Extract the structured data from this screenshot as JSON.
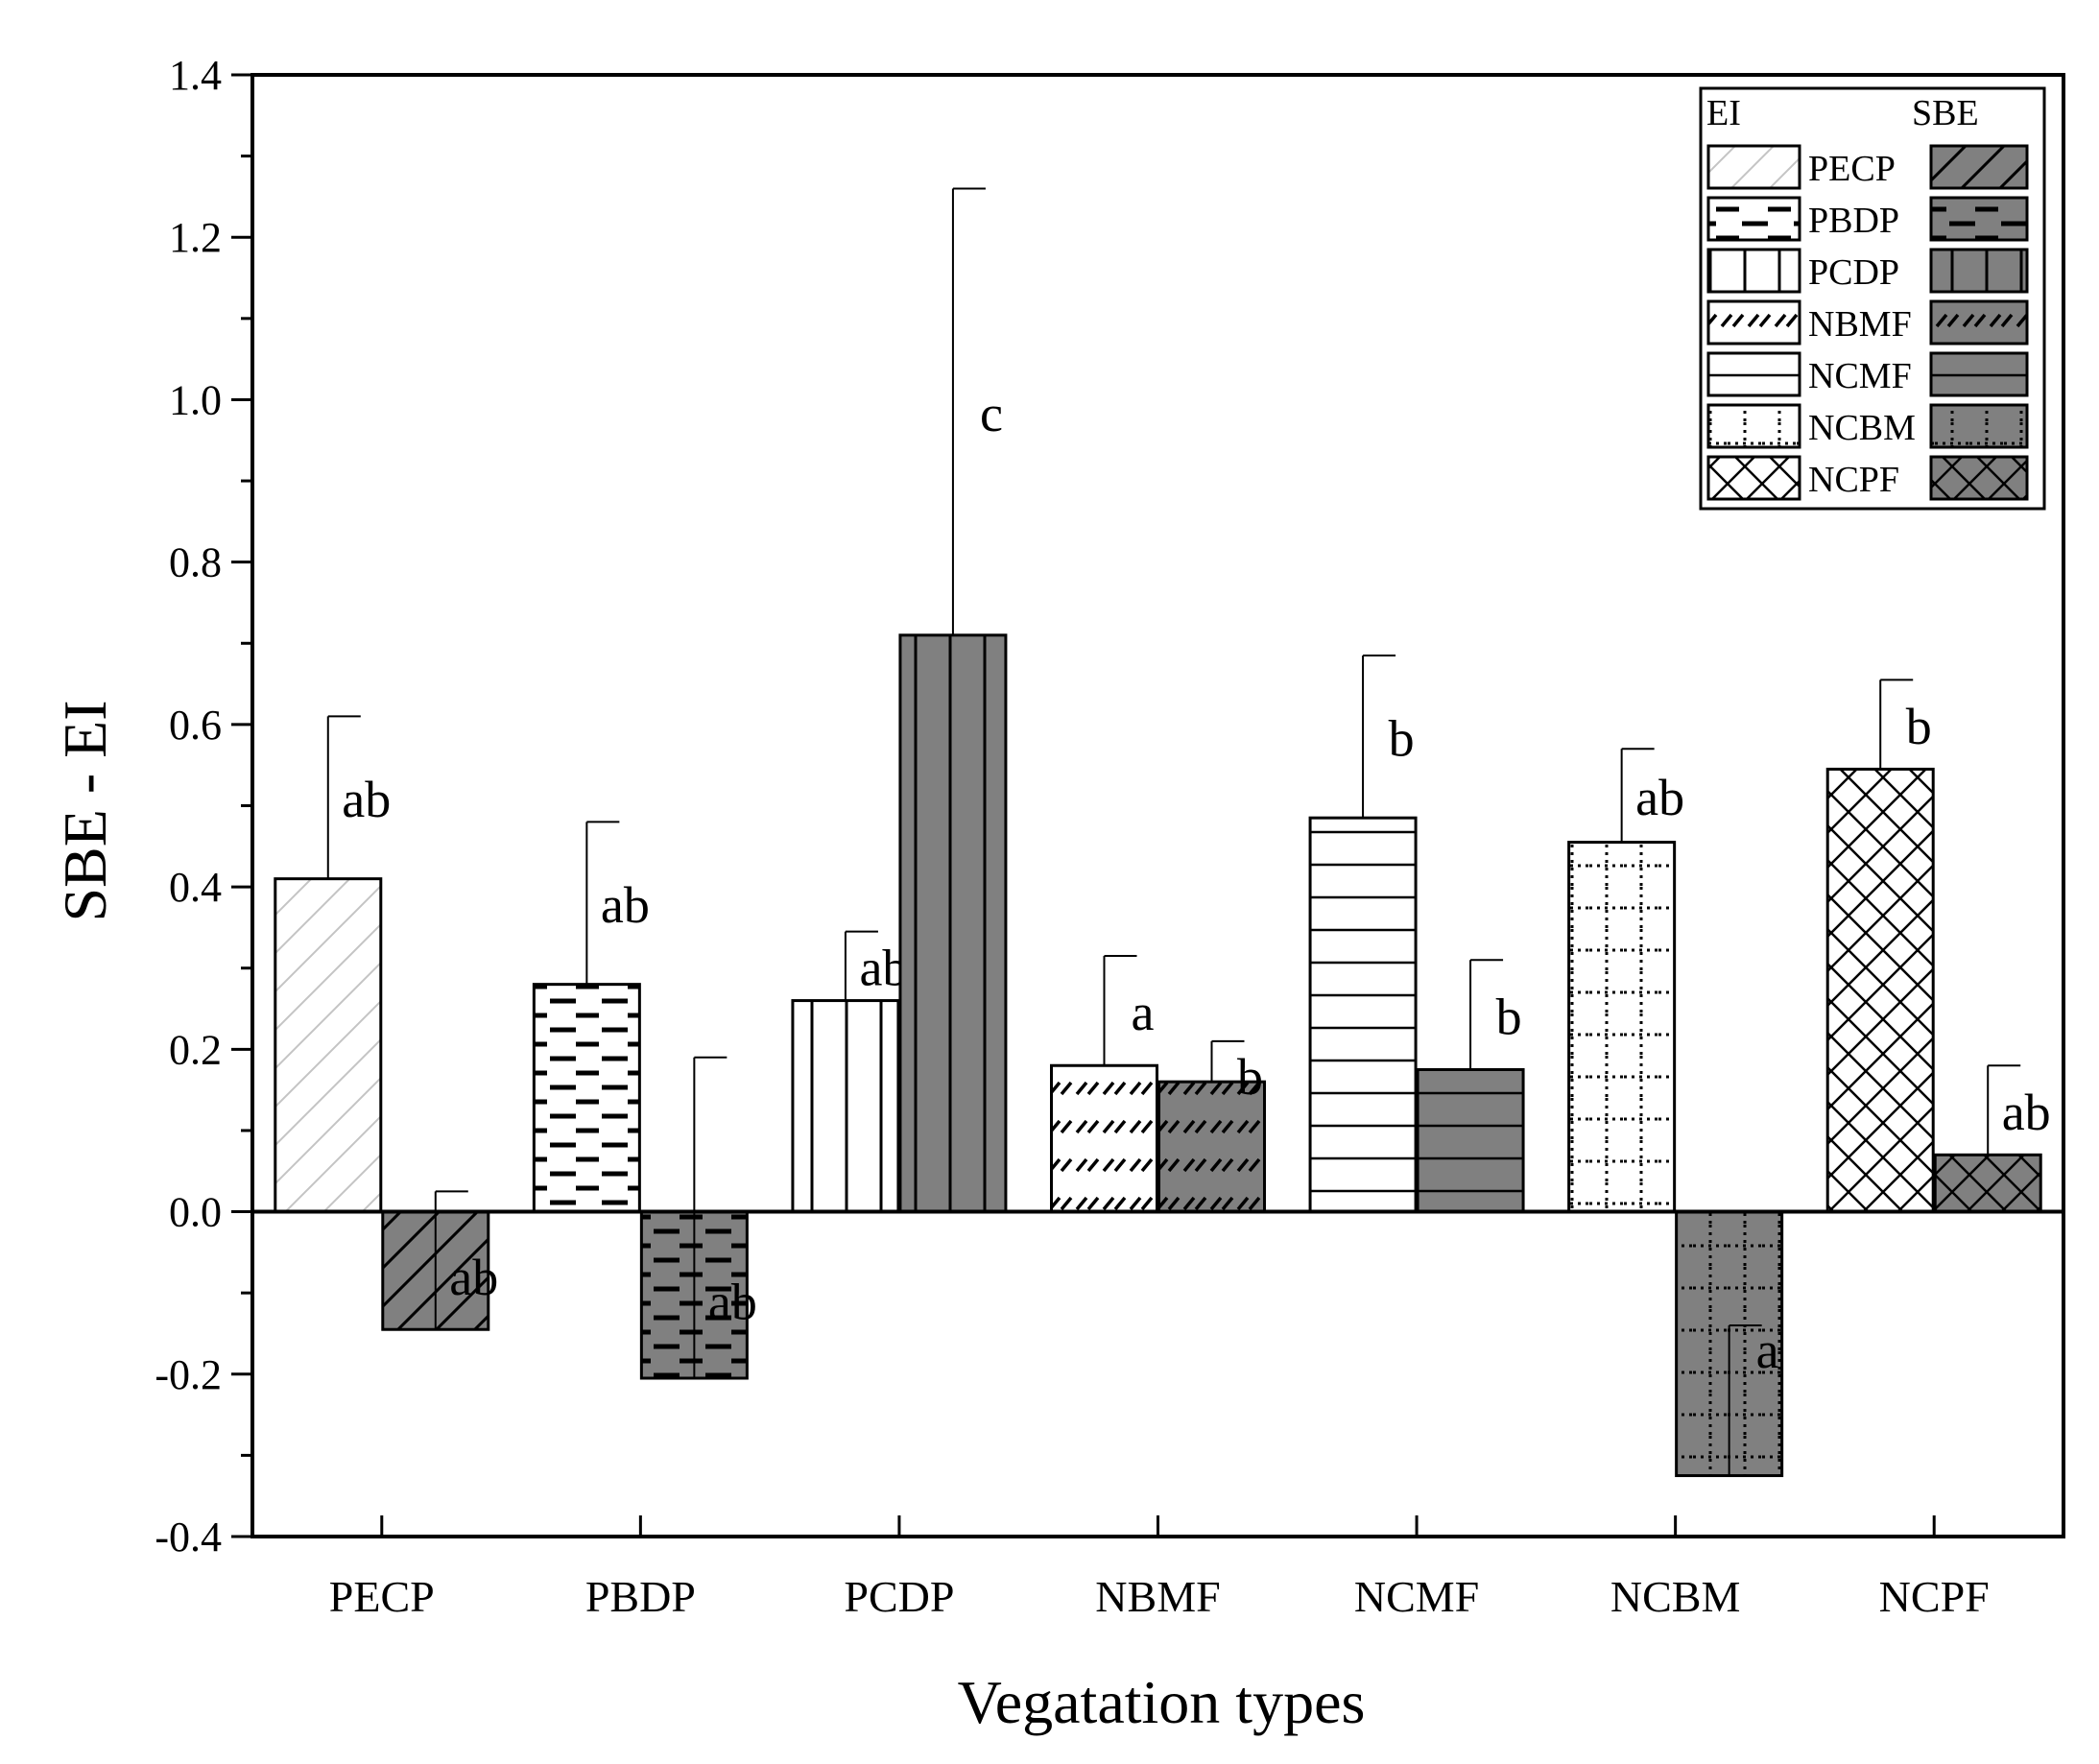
{
  "chart_data": {
    "type": "bar",
    "xlabel": "Vegatation types",
    "ylabel": "SBE - EI",
    "ylim": [
      -0.4,
      1.4
    ],
    "yticks": [
      "-0.4",
      "-0.2",
      "0.0",
      "0.2",
      "0.4",
      "0.6",
      "0.8",
      "1.0",
      "1.2",
      "1.4"
    ],
    "categories": [
      "PECP",
      "PBDP",
      "PCDP",
      "NBMF",
      "NCMF",
      "NCBM",
      "NCPF"
    ],
    "patterns": [
      "diag",
      "dash",
      "vline",
      "zigzag",
      "hline",
      "dotgrid",
      "cross"
    ],
    "legend": {
      "position": "top-right",
      "headers": [
        "EI",
        "SBE"
      ]
    },
    "series": [
      {
        "name": "EI",
        "color": "#ffffff",
        "values": [
          0.41,
          0.28,
          0.26,
          0.18,
          0.485,
          0.455,
          0.545
        ],
        "errors": [
          0.2,
          0.2,
          0.085,
          0.135,
          0.2,
          0.115,
          0.11
        ],
        "labels": [
          "ab",
          "ab",
          "ab",
          "a",
          "b",
          "ab",
          "b"
        ]
      },
      {
        "name": "SBE",
        "color": "#808080",
        "values": [
          -0.145,
          -0.205,
          0.71,
          0.16,
          0.175,
          -0.325,
          0.07
        ],
        "errors": [
          0.17,
          0.395,
          0.55,
          0.05,
          0.135,
          0.185,
          0.11
        ],
        "labels": [
          "ab",
          "ab",
          "c",
          "b",
          "b",
          "a",
          "ab"
        ]
      }
    ]
  }
}
